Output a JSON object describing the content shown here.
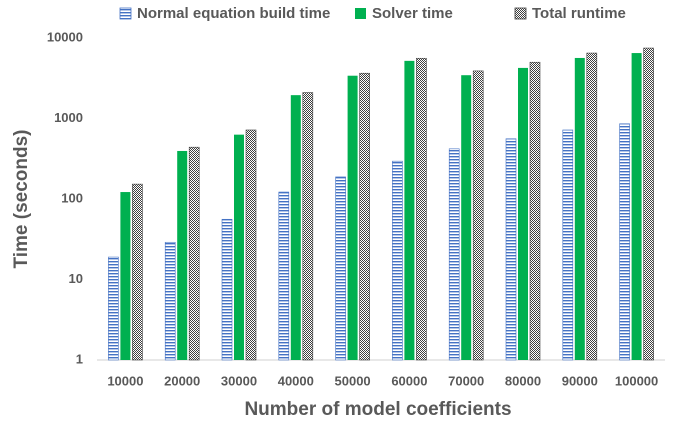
{
  "chart_data": {
    "type": "bar",
    "x_label": "Number of model coefficients",
    "y_label": "Time (seconds)",
    "categories": [
      "10000",
      "20000",
      "30000",
      "40000",
      "50000",
      "60000",
      "70000",
      "80000",
      "90000",
      "100000"
    ],
    "series": [
      {
        "name": "Normal equation build time",
        "color": "#4472c4",
        "hatch": "horizontal",
        "values": [
          19,
          29,
          56,
          122,
          188,
          295,
          420,
          560,
          720,
          860
        ]
      },
      {
        "name": "Solver time",
        "color": "#00b050",
        "hatch": "none",
        "values": [
          122,
          395,
          630,
          1950,
          3400,
          5200,
          3450,
          4250,
          5650,
          6500
        ]
      },
      {
        "name": "Total runtime",
        "color": "#404040",
        "hatch": "dots",
        "values": [
          153,
          440,
          720,
          2100,
          3650,
          5600,
          3900,
          5000,
          6500,
          7500
        ]
      }
    ],
    "yscale": "log",
    "ylim": [
      1,
      10000
    ],
    "yticks": [
      1,
      10,
      100,
      1000,
      10000
    ],
    "grid": false,
    "legend": "top"
  }
}
